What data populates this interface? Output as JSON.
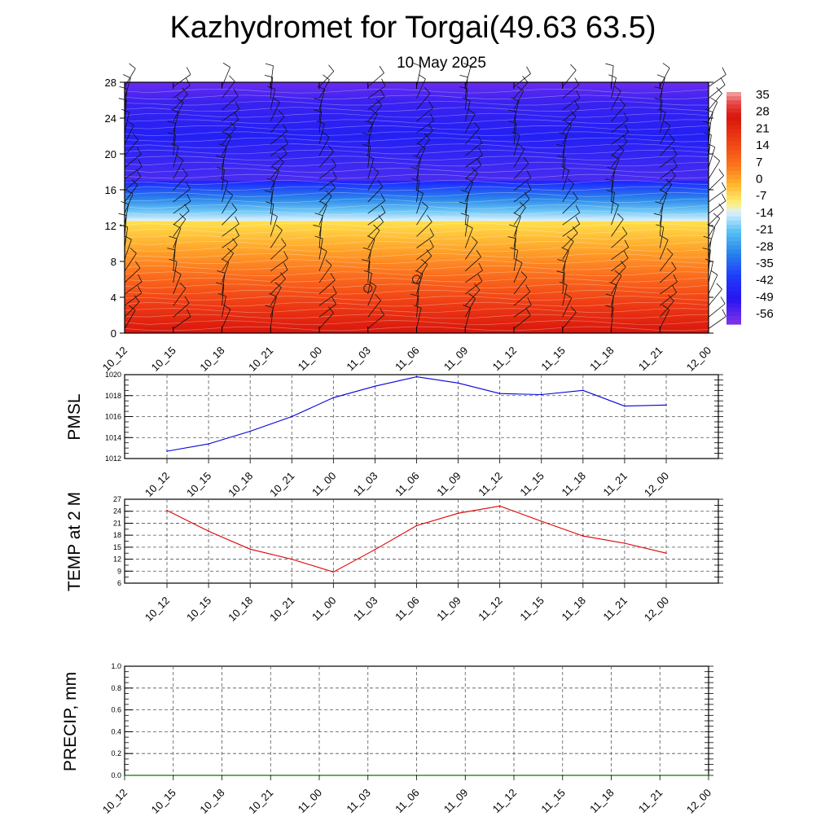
{
  "header": {
    "title": "Kazhydromet for Torgai(49.63 63.5)",
    "subtitle": "10 May 2025"
  },
  "chart_data": [
    {
      "type": "heatmap",
      "name": "temperature-wind-cross-section",
      "title": "",
      "x": [
        "10_12",
        "10_15",
        "10_18",
        "10_21",
        "11_00",
        "11_03",
        "11_06",
        "11_09",
        "11_12",
        "11_15",
        "11_18",
        "11_21",
        "12_00"
      ],
      "y_ticks": [
        0,
        4,
        8,
        12,
        16,
        20,
        24,
        28
      ],
      "ylim": [
        0,
        28
      ],
      "colorbar_labels": [
        "35",
        "28",
        "21",
        "14",
        "7",
        "0",
        "-7",
        "-14",
        "-21",
        "-28",
        "-35",
        "-42",
        "-49",
        "-56"
      ],
      "colorbar_range": [
        -60,
        38
      ],
      "wind_barbs": true,
      "calm_markers": [
        {
          "x": "11_03",
          "y": 5
        },
        {
          "x": "11_06",
          "y": 6
        }
      ],
      "bands": [
        {
          "y_from": 0,
          "y_to": 12.5,
          "color_low": "#dc1c10",
          "color_high": "#ffd23c"
        },
        {
          "y_from": 12.5,
          "y_to": 17,
          "color_low": "#cfe9ff",
          "color_high": "#1f30ff"
        },
        {
          "y_from": 17,
          "y_to": 28,
          "color": "#3a26f0"
        }
      ]
    },
    {
      "type": "line",
      "name": "pmsl",
      "ylabel": "PMSL",
      "categories": [
        "10_12",
        "10_15",
        "10_18",
        "10_21",
        "11_00",
        "11_03",
        "11_06",
        "11_09",
        "11_12",
        "11_15",
        "11_18",
        "11_21",
        "12_00"
      ],
      "ylim": [
        1012,
        1020
      ],
      "y_ticks": [
        1012,
        1014,
        1016,
        1018,
        1020
      ],
      "grid": true,
      "color": "#0000dd",
      "values": [
        1012.7,
        1013.4,
        1014.6,
        1016.0,
        1017.8,
        1018.9,
        1019.8,
        1019.2,
        1018.2,
        1018.1,
        1018.5,
        1017.0,
        1017.1
      ]
    },
    {
      "type": "line",
      "name": "temp-2m",
      "ylabel": "TEMP at 2 M",
      "categories": [
        "10_12",
        "10_15",
        "10_18",
        "10_21",
        "11_00",
        "11_03",
        "11_06",
        "11_09",
        "11_12",
        "11_15",
        "11_18",
        "11_21",
        "12_00"
      ],
      "ylim": [
        6,
        27
      ],
      "y_ticks": [
        6,
        9,
        12,
        15,
        18,
        21,
        24,
        27
      ],
      "grid": true,
      "color": "#dd0000",
      "values": [
        24.2,
        19.0,
        14.5,
        12.0,
        8.8,
        14.4,
        20.4,
        23.5,
        25.3,
        21.5,
        17.8,
        16.0,
        13.5
      ]
    },
    {
      "type": "line",
      "name": "precip",
      "ylabel": "PRECIP, mm",
      "categories": [
        "10_12",
        "10_15",
        "10_18",
        "10_21",
        "11_00",
        "11_03",
        "11_06",
        "11_09",
        "11_12",
        "11_15",
        "11_18",
        "11_21",
        "12_00"
      ],
      "ylim": [
        0,
        1
      ],
      "y_ticks": [
        "0.0",
        "0.2",
        "0.4",
        "0.6",
        "0.8",
        "1.0"
      ],
      "grid": true,
      "color": "#008800",
      "values": [
        0,
        0,
        0,
        0,
        0,
        0,
        0,
        0,
        0,
        0,
        0,
        0,
        0
      ]
    }
  ]
}
